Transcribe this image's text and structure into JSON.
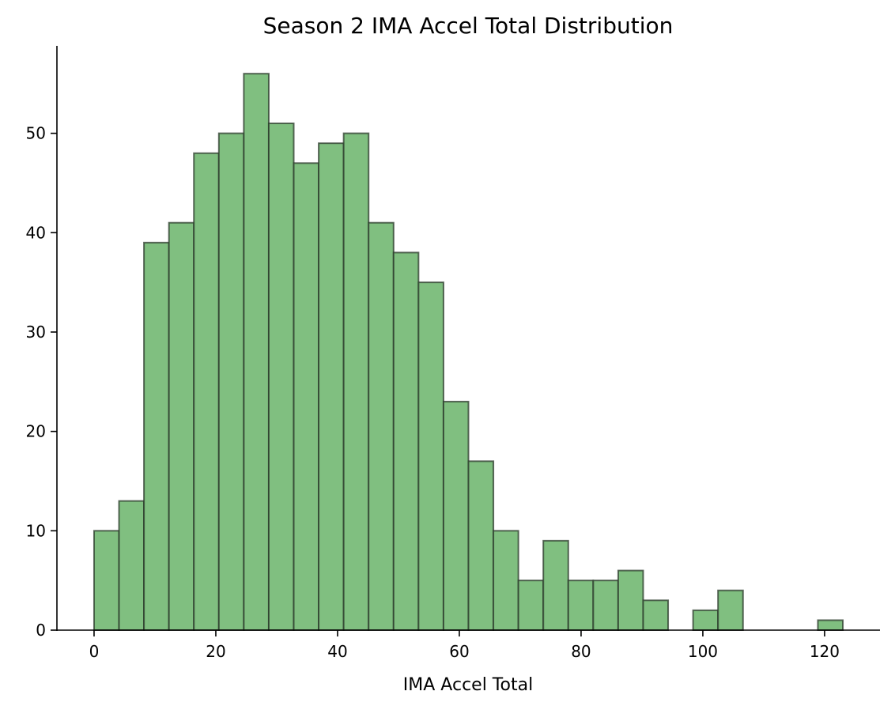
{
  "chart_data": {
    "type": "bar",
    "title": "Season 2 IMA Accel Total Distribution",
    "xlabel": "IMA Accel Total",
    "ylabel": "",
    "bar_color": "#80bf80",
    "edge_color": "#2b3a2b",
    "xlim": [
      -6.1,
      129.1
    ],
    "ylim": [
      0,
      58.8
    ],
    "xticks": [
      0,
      20,
      40,
      60,
      80,
      100,
      120
    ],
    "yticks": [
      0,
      10,
      20,
      30,
      40,
      50
    ],
    "bin_edges": [
      0.0,
      4.1,
      8.2,
      12.3,
      16.4,
      20.5,
      24.6,
      28.7,
      32.8,
      36.9,
      41.0,
      45.1,
      49.2,
      53.3,
      57.4,
      61.5,
      65.6,
      69.7,
      73.8,
      77.9,
      82.0,
      86.1,
      90.2,
      94.3,
      98.4,
      102.5,
      106.6,
      110.7,
      114.8,
      118.9,
      123.0
    ],
    "counts": [
      10,
      13,
      39,
      41,
      48,
      50,
      56,
      51,
      47,
      49,
      50,
      41,
      38,
      35,
      23,
      17,
      10,
      5,
      9,
      5,
      5,
      6,
      3,
      0,
      2,
      4,
      0,
      0,
      0,
      1
    ],
    "grid": false
  }
}
